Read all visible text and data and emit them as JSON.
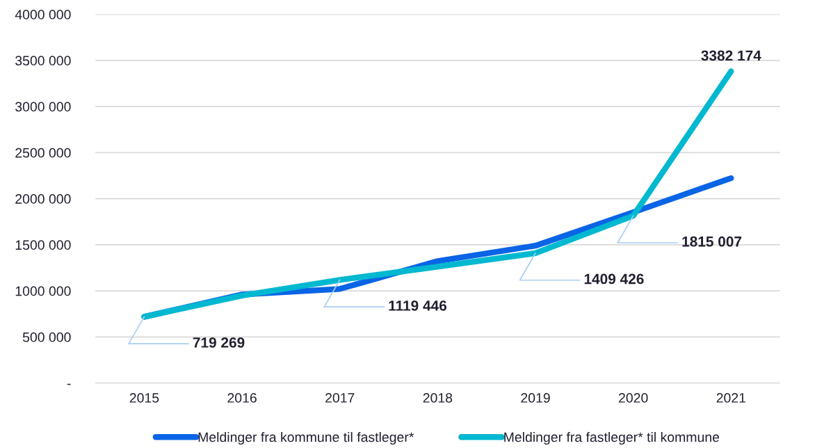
{
  "chart_data": {
    "type": "line",
    "categories": [
      "2015",
      "2016",
      "2017",
      "2018",
      "2019",
      "2020",
      "2021"
    ],
    "series": [
      {
        "name": "Meldinger fra kommune til fastleger*",
        "color": "#0a64e6",
        "values": [
          719269,
          960000,
          1021000,
          1323000,
          1490000,
          1853000,
          2223000
        ]
      },
      {
        "name": "Meldinger fra fastleger* til kommune",
        "color": "#00b8d0",
        "values": [
          719269,
          949000,
          1119446,
          1263000,
          1409426,
          1815007,
          3382174
        ],
        "value_labels": [
          "719 269",
          null,
          "1119 446",
          null,
          "1409 426",
          "1815 007",
          "3382 174"
        ]
      }
    ],
    "ylim": [
      0,
      4000000
    ],
    "yticks": [
      {
        "value": 0,
        "label": "-"
      },
      {
        "value": 500000,
        "label": "500 000"
      },
      {
        "value": 1000000,
        "label": "1000 000"
      },
      {
        "value": 1500000,
        "label": "1500 000"
      },
      {
        "value": 2000000,
        "label": "2000 000"
      },
      {
        "value": 2500000,
        "label": "2500 000"
      },
      {
        "value": 3000000,
        "label": "3000 000"
      },
      {
        "value": 3500000,
        "label": "3500 000"
      },
      {
        "value": 4000000,
        "label": "4000 000"
      }
    ],
    "grid": "y",
    "legend": "bottom",
    "marker": "none",
    "line_style": "solid"
  }
}
